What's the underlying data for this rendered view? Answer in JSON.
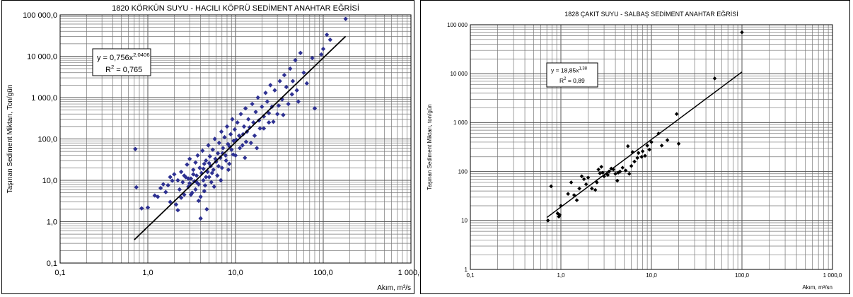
{
  "chart_data": [
    {
      "type": "scatter",
      "title": "1820  KÖRKÜN SUYU - HACILI KÖPRÜ  SEDİMENT ANAHTAR EĞRİSİ",
      "xlabel": "Akım, m³/s",
      "ylabel": "Taşınan Sediment Miktarı, Ton/gün",
      "x_scale": "log",
      "y_scale": "log",
      "xlim": [
        0.1,
        1000
      ],
      "ylim": [
        0.1,
        100000
      ],
      "x_ticks": [
        0.1,
        1,
        10,
        100,
        1000
      ],
      "x_tick_labels": [
        "0,1",
        "1,0",
        "10,0",
        "100,0",
        "1 000,0"
      ],
      "y_ticks": [
        0.1,
        1,
        10,
        100,
        1000,
        10000,
        100000
      ],
      "y_tick_labels": [
        "0,1",
        "1,0",
        "10,0",
        "100,0",
        "1 000,0",
        "10 000,0",
        "100 000,0"
      ],
      "grid": true,
      "marker_color": "#2e3192",
      "fit_line": {
        "a": 0.756,
        "b": 2.0406,
        "x_range": [
          0.7,
          180
        ]
      },
      "equation": {
        "prefix": "y = 0,756x",
        "exponent": "2,0406",
        "r2_prefix": "R",
        "r2_value": " = 0,765"
      },
      "points": [
        [
          0.72,
          57
        ],
        [
          0.74,
          6.8
        ],
        [
          0.85,
          2.1
        ],
        [
          1.0,
          2.2
        ],
        [
          1.2,
          4.3
        ],
        [
          1.3,
          4.0
        ],
        [
          1.4,
          6.5
        ],
        [
          1.5,
          8.0
        ],
        [
          1.6,
          5.2
        ],
        [
          1.7,
          7.6
        ],
        [
          1.8,
          3.0
        ],
        [
          1.9,
          9.8
        ],
        [
          2.0,
          14
        ],
        [
          2.1,
          2.6
        ],
        [
          2.2,
          1.9
        ],
        [
          2.3,
          6.0
        ],
        [
          2.4,
          16
        ],
        [
          2.5,
          9.0
        ],
        [
          2.6,
          4.5
        ],
        [
          2.7,
          12
        ],
        [
          2.8,
          24
        ],
        [
          2.9,
          7.0
        ],
        [
          3.0,
          8.5
        ],
        [
          3.0,
          33
        ],
        [
          3.1,
          11
        ],
        [
          3.2,
          5.0
        ],
        [
          3.3,
          18
        ],
        [
          3.4,
          9.5
        ],
        [
          3.5,
          27
        ],
        [
          3.5,
          6.0
        ],
        [
          3.6,
          13
        ],
        [
          3.7,
          40
        ],
        [
          3.8,
          8.0
        ],
        [
          3.9,
          20
        ],
        [
          4.0,
          4.0
        ],
        [
          4.0,
          1.2
        ],
        [
          4.1,
          15
        ],
        [
          4.2,
          52
        ],
        [
          4.3,
          10
        ],
        [
          4.4,
          25
        ],
        [
          4.5,
          7.5
        ],
        [
          4.6,
          30
        ],
        [
          4.7,
          2.0
        ],
        [
          4.8,
          16
        ],
        [
          4.9,
          70
        ],
        [
          5.0,
          12
        ],
        [
          5.1,
          38
        ],
        [
          5.2,
          22
        ],
        [
          5.3,
          9.0
        ],
        [
          5.5,
          55
        ],
        [
          5.6,
          18
        ],
        [
          5.8,
          100
        ],
        [
          6.0,
          28
        ],
        [
          6.2,
          13
        ],
        [
          6.3,
          45
        ],
        [
          6.5,
          80
        ],
        [
          6.7,
          35
        ],
        [
          6.9,
          150
        ],
        [
          7.0,
          20
        ],
        [
          7.2,
          60
        ],
        [
          7.5,
          110
        ],
        [
          7.7,
          40
        ],
        [
          8.0,
          200
        ],
        [
          8.2,
          75
        ],
        [
          8.5,
          25
        ],
        [
          8.8,
          130
        ],
        [
          9.0,
          55
        ],
        [
          9.2,
          300
        ],
        [
          9.5,
          90
        ],
        [
          9.8,
          170
        ],
        [
          10.0,
          40
        ],
        [
          10.5,
          250
        ],
        [
          11,
          120
        ],
        [
          11.5,
          400
        ],
        [
          12,
          70
        ],
        [
          12.5,
          200
        ],
        [
          13,
          550
        ],
        [
          13.5,
          150
        ],
        [
          14,
          300
        ],
        [
          15,
          80
        ],
        [
          15.5,
          700
        ],
        [
          16,
          250
        ],
        [
          17,
          450
        ],
        [
          18,
          1000
        ],
        [
          19,
          180
        ],
        [
          20,
          600
        ],
        [
          21,
          350
        ],
        [
          22,
          1300
        ],
        [
          23,
          800
        ],
        [
          24,
          250
        ],
        [
          25,
          2000
        ],
        [
          26,
          600
        ],
        [
          28,
          1500
        ],
        [
          30,
          400
        ],
        [
          32,
          2500
        ],
        [
          34,
          900
        ],
        [
          36,
          3500
        ],
        [
          38,
          1800
        ],
        [
          40,
          700
        ],
        [
          42,
          5000
        ],
        [
          45,
          2500
        ],
        [
          48,
          8000
        ],
        [
          50,
          1500
        ],
        [
          55,
          12000
        ],
        [
          60,
          4000
        ],
        [
          75,
          9000
        ],
        [
          80,
          550
        ],
        [
          95,
          11000
        ],
        [
          100,
          15000
        ],
        [
          110,
          33000
        ],
        [
          120,
          25000
        ],
        [
          180,
          80000
        ],
        [
          2.2,
          10
        ],
        [
          2.6,
          13
        ],
        [
          2.9,
          11
        ],
        [
          3.3,
          14
        ],
        [
          3.6,
          9
        ],
        [
          4.3,
          19
        ],
        [
          4.6,
          12
        ],
        [
          5.0,
          26
        ],
        [
          5.4,
          15
        ],
        [
          5.9,
          33
        ],
        [
          6.4,
          22
        ],
        [
          7.1,
          45
        ],
        [
          7.8,
          30
        ],
        [
          8.6,
          65
        ],
        [
          9.4,
          42
        ],
        [
          10.2,
          95
        ],
        [
          11.2,
          60
        ],
        [
          12.2,
          130
        ],
        [
          13.2,
          85
        ],
        [
          14.5,
          190
        ],
        [
          16.5,
          120
        ],
        [
          18.5,
          280
        ],
        [
          21,
          180
        ],
        [
          24,
          420
        ],
        [
          27,
          260
        ],
        [
          31,
          640
        ],
        [
          35,
          380
        ],
        [
          44,
          1200
        ],
        [
          52,
          800
        ],
        [
          65,
          2200
        ],
        [
          3.1,
          4.5
        ],
        [
          3.8,
          3.2
        ],
        [
          4.4,
          5.5
        ],
        [
          5.7,
          7.0
        ],
        [
          6.8,
          10
        ],
        [
          2.4,
          3.8
        ],
        [
          1.8,
          12
        ],
        [
          8.3,
          18
        ],
        [
          12.8,
          35
        ],
        [
          17.5,
          60
        ]
      ]
    },
    {
      "type": "scatter",
      "title": "1828  ÇAKIT SUYU - SALBAŞ  SEDİMENT ANAHTAR EĞRİSİ",
      "xlabel": "Akım, m³/sn",
      "ylabel": "Taşınan Sediment Miktarı, ton/gün",
      "x_scale": "log",
      "y_scale": "log",
      "xlim": [
        0.1,
        1000
      ],
      "ylim": [
        1,
        100000
      ],
      "x_ticks": [
        0.1,
        1,
        10,
        100,
        1000
      ],
      "x_tick_labels": [
        "0,1",
        "1,0",
        "10,0",
        "100,0",
        "1 000,0"
      ],
      "y_ticks": [
        1,
        10,
        100,
        1000,
        10000,
        100000
      ],
      "y_tick_labels": [
        "1",
        "10",
        "100",
        "1 000",
        "10 000",
        "100 000"
      ],
      "grid": true,
      "marker_color": "#000000",
      "fit_line": {
        "a": 18.85,
        "b": 1.38,
        "x_range": [
          0.7,
          100
        ]
      },
      "equation": {
        "prefix": "y = 18,85x",
        "exponent": "1,38",
        "r2_prefix": "R",
        "r2_value": " = 0,89"
      },
      "points": [
        [
          0.72,
          10
        ],
        [
          0.78,
          50
        ],
        [
          0.92,
          14
        ],
        [
          0.95,
          12
        ],
        [
          0.97,
          13
        ],
        [
          1.0,
          20
        ],
        [
          1.2,
          35
        ],
        [
          1.3,
          60
        ],
        [
          1.4,
          33
        ],
        [
          1.5,
          26
        ],
        [
          1.6,
          45
        ],
        [
          1.7,
          80
        ],
        [
          1.8,
          70
        ],
        [
          1.9,
          55
        ],
        [
          2.0,
          75
        ],
        [
          2.2,
          45
        ],
        [
          2.4,
          42
        ],
        [
          2.5,
          60
        ],
        [
          2.6,
          110
        ],
        [
          2.8,
          125
        ],
        [
          2.9,
          95
        ],
        [
          3.0,
          80
        ],
        [
          3.2,
          90
        ],
        [
          3.4,
          100
        ],
        [
          3.6,
          115
        ],
        [
          3.8,
          110
        ],
        [
          4.0,
          90
        ],
        [
          4.2,
          65
        ],
        [
          4.5,
          100
        ],
        [
          4.8,
          120
        ],
        [
          5.2,
          105
        ],
        [
          5.5,
          330
        ],
        [
          5.7,
          90
        ],
        [
          6.0,
          130
        ],
        [
          6.5,
          160
        ],
        [
          7.0,
          190
        ],
        [
          7.2,
          240
        ],
        [
          7.8,
          200
        ],
        [
          8.0,
          260
        ],
        [
          8.5,
          210
        ],
        [
          9.0,
          340
        ],
        [
          9.5,
          280
        ],
        [
          10.0,
          400
        ],
        [
          12,
          600
        ],
        [
          13,
          340
        ],
        [
          15,
          440
        ],
        [
          19,
          1500
        ],
        [
          20,
          370
        ],
        [
          50,
          8000
        ],
        [
          100,
          70000
        ],
        [
          4.3,
          95
        ],
        [
          6.2,
          250
        ],
        [
          3.3,
          85
        ],
        [
          2.7,
          92
        ]
      ]
    }
  ]
}
